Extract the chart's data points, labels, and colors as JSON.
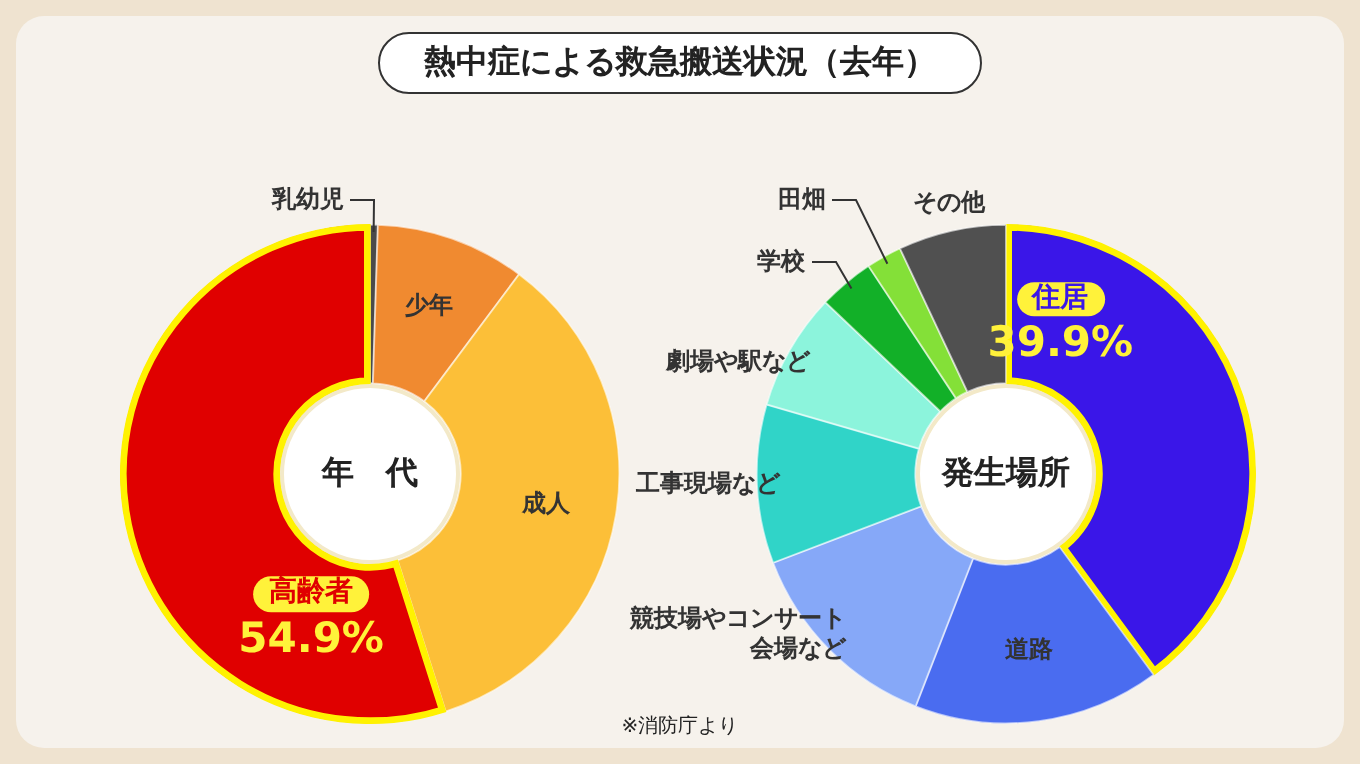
{
  "chart_data": [
    {
      "type": "donut",
      "title": "年　代",
      "categories": [
        "乳幼児",
        "少年",
        "成人",
        "高齢者"
      ],
      "values": [
        0.5,
        9.7,
        34.9,
        54.9
      ],
      "colors": [
        "#4a4a4a",
        "#f08a30",
        "#fcbf38",
        "#e00000"
      ],
      "value_labels": [
        null,
        null,
        null,
        "54.9%"
      ],
      "annotations": [
        "熱中症による救急搬送状況（去年）"
      ]
    },
    {
      "type": "donut",
      "title": "発生場所",
      "categories": [
        "住居",
        "道路",
        "競技場やコンサート会場など",
        "工事現場など",
        "劇場や駅など",
        "学校",
        "田畑",
        "その他"
      ],
      "values": [
        39.9,
        16.0,
        13.3,
        10.3,
        7.6,
        3.6,
        2.3,
        7.0
      ],
      "colors": [
        "#3a16e8",
        "#4a6cf0",
        "#86a8f8",
        "#30d4c8",
        "#8cf4dc",
        "#12b028",
        "#84e038",
        "#505050"
      ],
      "value_labels": [
        "39.9%",
        null,
        null,
        null,
        null,
        null,
        null,
        null
      ],
      "annotations": [
        "※消防庁より"
      ]
    }
  ]
}
